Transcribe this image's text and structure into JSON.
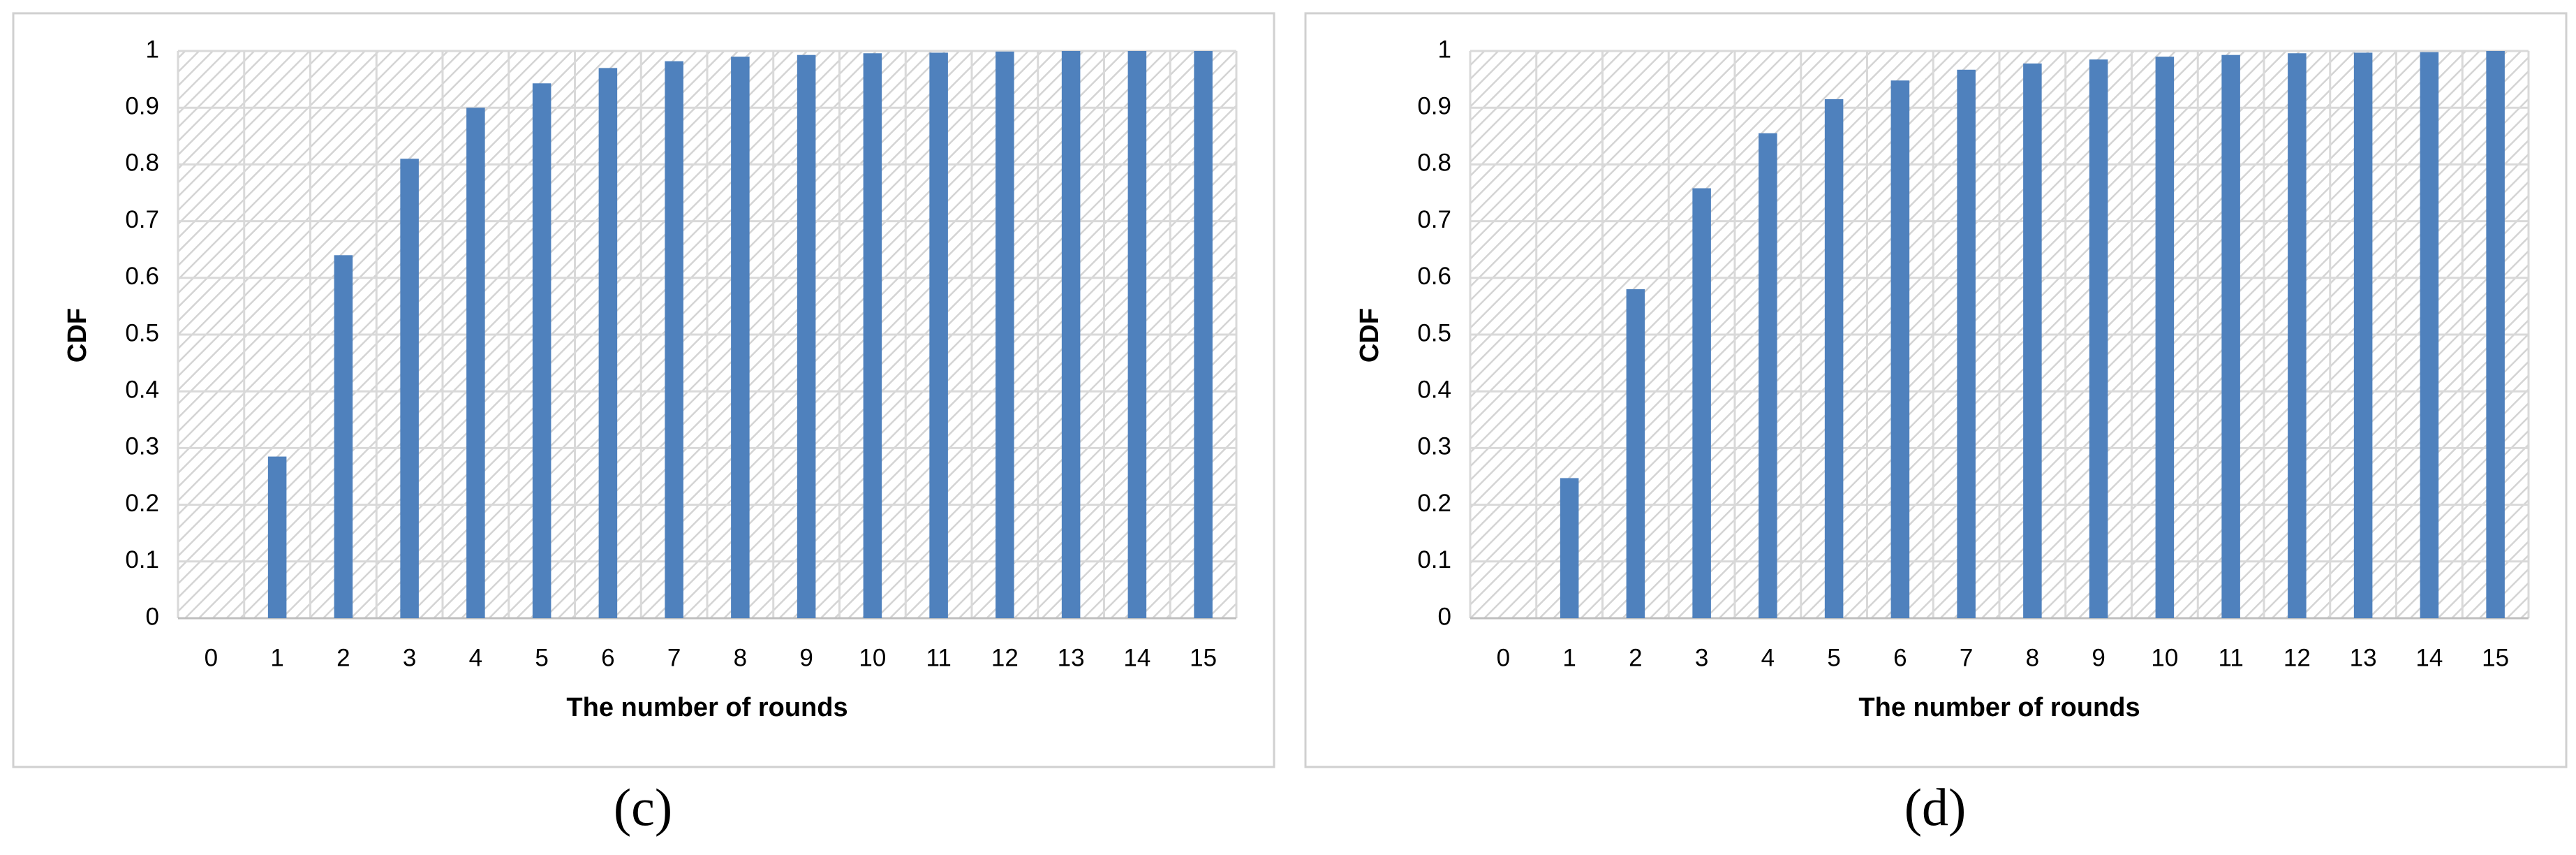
{
  "chart_data": [
    {
      "type": "bar",
      "panel_label": "(c)",
      "xlabel": "The number of rounds",
      "ylabel": "CDF",
      "categories": [
        "0",
        "1",
        "2",
        "3",
        "4",
        "5",
        "6",
        "7",
        "8",
        "9",
        "10",
        "11",
        "12",
        "13",
        "14",
        "15"
      ],
      "values": [
        0,
        0.285,
        0.64,
        0.81,
        0.9,
        0.943,
        0.97,
        0.982,
        0.99,
        0.993,
        0.996,
        0.997,
        0.999,
        1,
        1,
        1
      ],
      "color": "#4f81bd",
      "ylim": [
        0,
        1
      ],
      "yticks": [
        0,
        0.1,
        0.2,
        0.3,
        0.4,
        0.5,
        0.6,
        0.7,
        0.8,
        0.9,
        1
      ],
      "grid": true
    },
    {
      "type": "bar",
      "panel_label": "(d)",
      "xlabel": "The number of rounds",
      "ylabel": "CDF",
      "categories": [
        "0",
        "1",
        "2",
        "3",
        "4",
        "5",
        "6",
        "7",
        "8",
        "9",
        "10",
        "11",
        "12",
        "13",
        "14",
        "15"
      ],
      "values": [
        0,
        0.247,
        0.58,
        0.758,
        0.855,
        0.915,
        0.948,
        0.967,
        0.978,
        0.985,
        0.99,
        0.993,
        0.996,
        0.997,
        0.998,
        1
      ],
      "color": "#4f81bd",
      "ylim": [
        0,
        1
      ],
      "yticks": [
        0,
        0.1,
        0.2,
        0.3,
        0.4,
        0.5,
        0.6,
        0.7,
        0.8,
        0.9,
        1
      ],
      "grid": true
    }
  ]
}
